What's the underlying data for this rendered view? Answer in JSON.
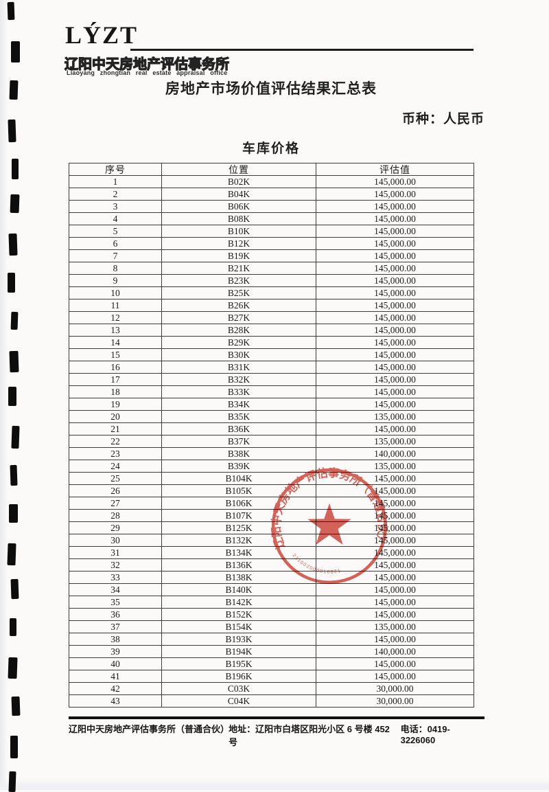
{
  "logo": {
    "acronym": "LÝZT",
    "company_cn": "辽阳中天房地产评估事务所",
    "company_en": "Liaoyang zhongtian real estate appraisal office"
  },
  "title": "房地产市场价值评估结果汇总表",
  "currency_label": "币种：人民币",
  "section_title": "车库价格",
  "table": {
    "headers": [
      "序号",
      "位置",
      "评估值"
    ],
    "rows": [
      [
        "1",
        "B02K",
        "145,000.00"
      ],
      [
        "2",
        "B04K",
        "145,000.00"
      ],
      [
        "3",
        "B06K",
        "145,000.00"
      ],
      [
        "4",
        "B08K",
        "145,000.00"
      ],
      [
        "5",
        "B10K",
        "145,000.00"
      ],
      [
        "6",
        "B12K",
        "145,000.00"
      ],
      [
        "7",
        "B19K",
        "145,000.00"
      ],
      [
        "8",
        "B21K",
        "145,000.00"
      ],
      [
        "9",
        "B23K",
        "145,000.00"
      ],
      [
        "10",
        "B25K",
        "145,000.00"
      ],
      [
        "11",
        "B26K",
        "145,000.00"
      ],
      [
        "12",
        "B27K",
        "145,000.00"
      ],
      [
        "13",
        "B28K",
        "145,000.00"
      ],
      [
        "14",
        "B29K",
        "145,000.00"
      ],
      [
        "15",
        "B30K",
        "145,000.00"
      ],
      [
        "16",
        "B31K",
        "145,000.00"
      ],
      [
        "17",
        "B32K",
        "145,000.00"
      ],
      [
        "18",
        "B33K",
        "145,000.00"
      ],
      [
        "19",
        "B34K",
        "145,000.00"
      ],
      [
        "20",
        "B35K",
        "135,000.00"
      ],
      [
        "21",
        "B36K",
        "145,000.00"
      ],
      [
        "22",
        "B37K",
        "135,000.00"
      ],
      [
        "23",
        "B38K",
        "140,000.00"
      ],
      [
        "24",
        "B39K",
        "135,000.00"
      ],
      [
        "25",
        "B104K",
        "145,000.00"
      ],
      [
        "26",
        "B105K",
        "145,000.00"
      ],
      [
        "27",
        "B106K",
        "145,000.00"
      ],
      [
        "28",
        "B107K",
        "145,000.00"
      ],
      [
        "29",
        "B125K",
        "145,000.00"
      ],
      [
        "30",
        "B132K",
        "145,000.00"
      ],
      [
        "31",
        "B134K",
        "145,000.00"
      ],
      [
        "32",
        "B136K",
        "145,000.00"
      ],
      [
        "33",
        "B138K",
        "145,000.00"
      ],
      [
        "34",
        "B140K",
        "145,000.00"
      ],
      [
        "35",
        "B142K",
        "145,000.00"
      ],
      [
        "36",
        "B152K",
        "145,000.00"
      ],
      [
        "37",
        "B154K",
        "135,000.00"
      ],
      [
        "38",
        "B193K",
        "145,000.00"
      ],
      [
        "39",
        "B194K",
        "140,000.00"
      ],
      [
        "40",
        "B195K",
        "145,000.00"
      ],
      [
        "41",
        "B196K",
        "145,000.00"
      ],
      [
        "42",
        "C03K",
        "30,000.00"
      ],
      [
        "43",
        "C04K",
        "30,000.00"
      ]
    ]
  },
  "stamp": {
    "ring_text": "辽阳中天房地产评估事务所（普通合伙）",
    "serial": "211002000016821",
    "color": "#cf4337"
  },
  "footer": {
    "company": "辽阳中天房地产评估事务所（普通合伙）",
    "address": "地址：辽阳市白塔区阳光小区 6 号楼 452 号",
    "phone": "电话：0419-3226060"
  }
}
